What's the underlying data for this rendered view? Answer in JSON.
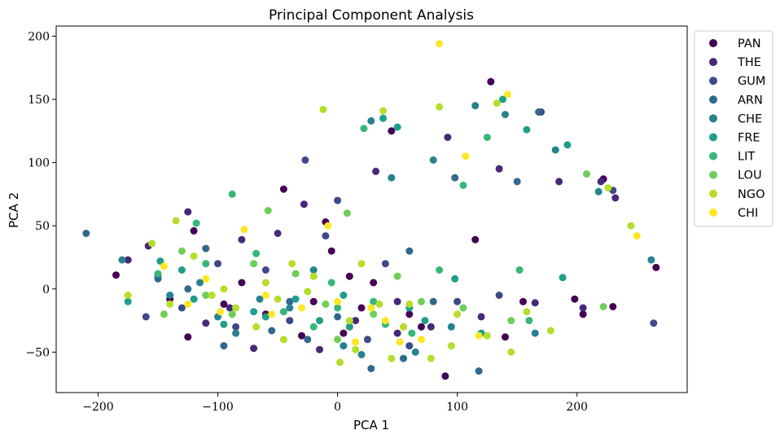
{
  "chart_data": {
    "type": "scatter",
    "title": "Principal Component Analysis",
    "xlabel": "PCA 1",
    "ylabel": "PCA 2",
    "xlim": [
      -235,
      292
    ],
    "ylim": [
      -82,
      208
    ],
    "xticks": [
      -200,
      -100,
      0,
      100,
      200
    ],
    "yticks": [
      -50,
      0,
      50,
      100,
      150,
      200
    ],
    "xtick_labels": [
      "−200",
      "−100",
      "0",
      "100",
      "200"
    ],
    "ytick_labels": [
      "−50",
      "0",
      "50",
      "100",
      "150",
      "200"
    ],
    "grid": false,
    "legend_position": "outside-right",
    "series": [
      {
        "name": "PAN",
        "color": "#440154",
        "points": [
          [
            -185,
            11
          ],
          [
            -120,
            46
          ],
          [
            -80,
            5
          ],
          [
            -60,
            -20
          ],
          [
            -45,
            79
          ],
          [
            -30,
            -37
          ],
          [
            -10,
            53
          ],
          [
            -5,
            30
          ],
          [
            5,
            -35
          ],
          [
            10,
            10
          ],
          [
            20,
            -15
          ],
          [
            30,
            5
          ],
          [
            45,
            125
          ],
          [
            60,
            -20
          ],
          [
            90,
            -69
          ],
          [
            115,
            39
          ],
          [
            128,
            164
          ],
          [
            140,
            -38
          ],
          [
            155,
            -10
          ],
          [
            198,
            -8
          ],
          [
            205,
            -20
          ],
          [
            222,
            87
          ],
          [
            230,
            -14
          ],
          [
            266,
            17
          ],
          [
            -125,
            -38
          ],
          [
            -95,
            -12
          ],
          [
            70,
            -30
          ],
          [
            -140,
            -8
          ],
          [
            -20,
            -10
          ]
        ]
      },
      {
        "name": "THE",
        "color": "#482878",
        "points": [
          [
            -175,
            23
          ],
          [
            -158,
            34
          ],
          [
            -125,
            61
          ],
          [
            -110,
            -27
          ],
          [
            -90,
            -15
          ],
          [
            -70,
            -47
          ],
          [
            -50,
            44
          ],
          [
            -28,
            67
          ],
          [
            -15,
            -48
          ],
          [
            15,
            -25
          ],
          [
            32,
            93
          ],
          [
            50,
            -10
          ],
          [
            78,
            -30
          ],
          [
            92,
            120
          ],
          [
            120,
            -22
          ],
          [
            135,
            95
          ],
          [
            165,
            -11
          ],
          [
            185,
            85
          ],
          [
            205,
            -15
          ],
          [
            220,
            85
          ],
          [
            232,
            72
          ],
          [
            -80,
            39
          ],
          [
            10,
            -30
          ],
          [
            50,
            -35
          ]
        ]
      },
      {
        "name": "GUM",
        "color": "#3e4989",
        "points": [
          [
            -160,
            -22
          ],
          [
            -150,
            10
          ],
          [
            -130,
            -15
          ],
          [
            -100,
            20
          ],
          [
            -85,
            -30
          ],
          [
            -27,
            102
          ],
          [
            -10,
            42
          ],
          [
            0,
            70
          ],
          [
            25,
            -40
          ],
          [
            60,
            -45
          ],
          [
            100,
            -10
          ],
          [
            135,
            -5
          ],
          [
            170,
            140
          ],
          [
            230,
            78
          ],
          [
            264,
            -27
          ],
          [
            -60,
            15
          ],
          [
            40,
            20
          ],
          [
            -40,
            -25
          ]
        ]
      },
      {
        "name": "ARN",
        "color": "#31688e",
        "points": [
          [
            -210,
            44
          ],
          [
            -150,
            8
          ],
          [
            -125,
            0
          ],
          [
            -95,
            -45
          ],
          [
            -55,
            -33
          ],
          [
            -40,
            -10
          ],
          [
            -25,
            -40
          ],
          [
            28,
            -63
          ],
          [
            55,
            -55
          ],
          [
            80,
            -10
          ],
          [
            98,
            88
          ],
          [
            118,
            -65
          ],
          [
            150,
            85
          ],
          [
            168,
            140
          ],
          [
            -110,
            32
          ],
          [
            0,
            -22
          ],
          [
            60,
            30
          ]
        ]
      },
      {
        "name": "CHE",
        "color": "#26828e",
        "points": [
          [
            -180,
            23
          ],
          [
            -140,
            -5
          ],
          [
            -115,
            5
          ],
          [
            -85,
            -35
          ],
          [
            -65,
            -8
          ],
          [
            -40,
            -15
          ],
          [
            -20,
            15
          ],
          [
            5,
            -45
          ],
          [
            28,
            133
          ],
          [
            45,
            88
          ],
          [
            65,
            -50
          ],
          [
            80,
            102
          ],
          [
            115,
            145
          ],
          [
            140,
            138
          ],
          [
            165,
            -35
          ],
          [
            182,
            110
          ],
          [
            218,
            77
          ],
          [
            262,
            23
          ],
          [
            -100,
            -22
          ],
          [
            20,
            -52
          ],
          [
            95,
            -30
          ]
        ]
      },
      {
        "name": "FRE",
        "color": "#1f9e89",
        "points": [
          [
            -175,
            -10
          ],
          [
            -148,
            22
          ],
          [
            -120,
            -8
          ],
          [
            -95,
            -28
          ],
          [
            -60,
            -22
          ],
          [
            -35,
            -8
          ],
          [
            -15,
            -25
          ],
          [
            10,
            -30
          ],
          [
            38,
            135
          ],
          [
            50,
            128
          ],
          [
            73,
            -25
          ],
          [
            98,
            8
          ],
          [
            120,
            -35
          ],
          [
            138,
            150
          ],
          [
            158,
            126
          ],
          [
            192,
            114
          ],
          [
            188,
            9
          ],
          [
            -130,
            15
          ],
          [
            -70,
            -18
          ],
          [
            5,
            -5
          ],
          [
            60,
            -15
          ]
        ]
      },
      {
        "name": "LIT",
        "color": "#35b779",
        "points": [
          [
            -150,
            12
          ],
          [
            -118,
            52
          ],
          [
            -88,
            75
          ],
          [
            -68,
            28
          ],
          [
            -45,
            -18
          ],
          [
            -20,
            -30
          ],
          [
            0,
            -15
          ],
          [
            22,
            127
          ],
          [
            40,
            -28
          ],
          [
            62,
            -35
          ],
          [
            85,
            15
          ],
          [
            105,
            82
          ],
          [
            125,
            120
          ],
          [
            152,
            15
          ],
          [
            160,
            -25
          ],
          [
            -110,
            20
          ],
          [
            30,
            -10
          ],
          [
            -5,
            5
          ]
        ]
      },
      {
        "name": "LOU",
        "color": "#6ece58",
        "points": [
          [
            -145,
            -20
          ],
          [
            -110,
            -5
          ],
          [
            -88,
            -20
          ],
          [
            -58,
            62
          ],
          [
            -35,
            12
          ],
          [
            -10,
            -12
          ],
          [
            8,
            60
          ],
          [
            30,
            -20
          ],
          [
            70,
            -10
          ],
          [
            105,
            -15
          ],
          [
            145,
            -25
          ],
          [
            208,
            91
          ],
          [
            222,
            -14
          ],
          [
            -130,
            30
          ],
          [
            -70,
            20
          ],
          [
            50,
            10
          ],
          [
            0,
            -40
          ]
        ]
      },
      {
        "name": "NGO",
        "color": "#b5de2b",
        "points": [
          [
            -155,
            36
          ],
          [
            -135,
            54
          ],
          [
            -120,
            26
          ],
          [
            -105,
            -5
          ],
          [
            -85,
            -15
          ],
          [
            -68,
            -30
          ],
          [
            -50,
            -8
          ],
          [
            -38,
            20
          ],
          [
            -25,
            -2
          ],
          [
            -12,
            142
          ],
          [
            2,
            -58
          ],
          [
            15,
            -48
          ],
          [
            35,
            -12
          ],
          [
            38,
            141
          ],
          [
            45,
            -55
          ],
          [
            60,
            -12
          ],
          [
            78,
            -55
          ],
          [
            85,
            144
          ],
          [
            95,
            -45
          ],
          [
            125,
            -37
          ],
          [
            133,
            147
          ],
          [
            145,
            -50
          ],
          [
            158,
            -18
          ],
          [
            178,
            -33
          ],
          [
            226,
            80
          ],
          [
            245,
            50
          ],
          [
            -175,
            -5
          ],
          [
            -95,
            0
          ],
          [
            -60,
            5
          ],
          [
            -20,
            10
          ],
          [
            10,
            -25
          ],
          [
            55,
            -30
          ],
          [
            -45,
            -40
          ],
          [
            100,
            -20
          ],
          [
            20,
            20
          ],
          [
            -140,
            -12
          ]
        ]
      },
      {
        "name": "CHI",
        "color": "#fde725",
        "points": [
          [
            -145,
            18
          ],
          [
            -125,
            -12
          ],
          [
            -98,
            -18
          ],
          [
            -78,
            47
          ],
          [
            -55,
            -20
          ],
          [
            -30,
            -15
          ],
          [
            -8,
            50
          ],
          [
            15,
            -42
          ],
          [
            28,
            -15
          ],
          [
            52,
            -42
          ],
          [
            85,
            194
          ],
          [
            107,
            105
          ],
          [
            118,
            -37
          ],
          [
            142,
            154
          ],
          [
            250,
            42
          ],
          [
            -60,
            -5
          ],
          [
            0,
            -10
          ],
          [
            40,
            -25
          ],
          [
            -110,
            8
          ],
          [
            70,
            -40
          ]
        ]
      }
    ]
  }
}
